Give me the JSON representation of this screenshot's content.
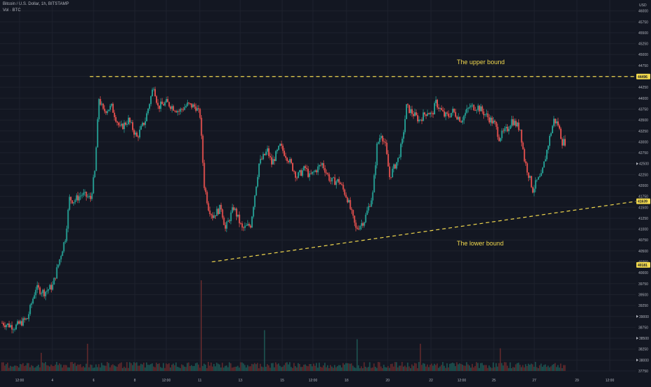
{
  "header": {
    "title": "Bitcoin / U.S. Dollar, 1h, BITSTAMP",
    "volume_label": "Vol · BTC",
    "currency": "USD"
  },
  "annotations": {
    "upper_label": "The upper bound",
    "lower_label": "The lower bound"
  },
  "colors": {
    "background": "#131722",
    "up": "#26a69a",
    "down": "#ef5350",
    "trendline": "#f2d94e",
    "axis_text": "#b2b5be",
    "grid": "#1e222d"
  },
  "chart_data": {
    "type": "candlestick",
    "title": "Bitcoin / U.S. Dollar, 1h, BITSTAMP",
    "x_ticks": [
      "12:00",
      "4",
      "6",
      "8",
      "12:00",
      "11",
      "13",
      "15",
      "12:00",
      "18",
      "20",
      "22",
      "12:00",
      "25",
      "27",
      "29",
      "12:00"
    ],
    "y_ticks": [
      46000,
      45750,
      45500,
      45250,
      45000,
      44750,
      44500,
      44250,
      44000,
      43750,
      43500,
      43250,
      43000,
      42750,
      42500,
      42250,
      42000,
      41750,
      41500,
      41250,
      41000,
      40750,
      40500,
      40250,
      40000,
      39750,
      39500,
      39250,
      39000,
      38750,
      38500,
      38250,
      38000,
      37750
    ],
    "ylim": [
      37750,
      46250
    ],
    "y_markers": [
      {
        "value": 44496,
        "label": "44496",
        "style": "highlight"
      },
      {
        "value": 42500,
        "label": "42500",
        "style": "arrow"
      },
      {
        "value": 41639,
        "label": "41639",
        "style": "highlight"
      },
      {
        "value": 40181,
        "label": "40181",
        "style": "highlight"
      },
      {
        "value": 39000,
        "label": "39000",
        "style": "arrow"
      },
      {
        "value": 38500,
        "label": "38500",
        "style": "arrow"
      },
      {
        "value": 38000,
        "label": "38000",
        "style": "arrow"
      }
    ],
    "price_path": [
      [
        0,
        38850
      ],
      [
        3,
        38760
      ],
      [
        6,
        38950
      ],
      [
        8,
        39650
      ],
      [
        10,
        39550
      ],
      [
        12,
        39700
      ],
      [
        15,
        40800
      ],
      [
        16,
        41700
      ],
      [
        17,
        41650
      ],
      [
        19,
        41800
      ],
      [
        21,
        41700
      ],
      [
        22,
        42300
      ],
      [
        23,
        44000
      ],
      [
        24,
        43700
      ],
      [
        26,
        43800
      ],
      [
        28,
        43300
      ],
      [
        30,
        43500
      ],
      [
        32,
        43100
      ],
      [
        34,
        43500
      ],
      [
        36,
        44300
      ],
      [
        37,
        43800
      ],
      [
        39,
        43900
      ],
      [
        42,
        43700
      ],
      [
        44,
        43850
      ],
      [
        46,
        43800
      ],
      [
        47,
        43600
      ],
      [
        48,
        42000
      ],
      [
        49,
        41500
      ],
      [
        50,
        41300
      ],
      [
        52,
        41500
      ],
      [
        53,
        41000
      ],
      [
        55,
        41500
      ],
      [
        57,
        41000
      ],
      [
        59,
        41100
      ],
      [
        61,
        42500
      ],
      [
        63,
        42800
      ],
      [
        64,
        42500
      ],
      [
        66,
        42900
      ],
      [
        68,
        42600
      ],
      [
        70,
        42200
      ],
      [
        72,
        42400
      ],
      [
        73,
        42200
      ],
      [
        74,
        42300
      ],
      [
        76,
        42500
      ],
      [
        78,
        42100
      ],
      [
        80,
        42100
      ],
      [
        82,
        41700
      ],
      [
        84,
        41000
      ],
      [
        86,
        41200
      ],
      [
        88,
        41800
      ],
      [
        89,
        42900
      ],
      [
        90,
        43200
      ],
      [
        91,
        42900
      ],
      [
        92,
        42200
      ],
      [
        93,
        42400
      ],
      [
        94,
        42600
      ],
      [
        95,
        43000
      ],
      [
        96,
        43800
      ],
      [
        97,
        43700
      ],
      [
        99,
        43500
      ],
      [
        101,
        43700
      ],
      [
        102,
        43600
      ],
      [
        103,
        43900
      ],
      [
        105,
        43600
      ],
      [
        106,
        43600
      ],
      [
        107,
        43700
      ],
      [
        109,
        43500
      ],
      [
        111,
        43800
      ],
      [
        113,
        43800
      ],
      [
        115,
        43600
      ],
      [
        117,
        43400
      ],
      [
        118,
        43100
      ],
      [
        120,
        43300
      ],
      [
        121,
        43500
      ],
      [
        122,
        43400
      ],
      [
        123,
        43300
      ],
      [
        124,
        42600
      ],
      [
        126,
        41900
      ],
      [
        127,
        42100
      ],
      [
        128,
        42200
      ],
      [
        130,
        43100
      ],
      [
        131,
        43500
      ],
      [
        132,
        43400
      ],
      [
        133,
        43000
      ]
    ],
    "total_candles": 134,
    "lines": [
      {
        "name": "The upper bound",
        "style": "dashed",
        "points": [
          [
            21,
            44496
          ],
          [
            134,
            44496
          ]
        ]
      },
      {
        "name": "The lower bound",
        "style": "dashed",
        "points": [
          [
            50,
            40250
          ],
          [
            134,
            41639
          ]
        ]
      }
    ],
    "volume_spikes": [
      [
        47,
        1.0
      ],
      [
        62,
        0.45
      ],
      [
        84,
        0.35
      ],
      [
        20,
        0.3
      ],
      [
        99,
        0.3
      ],
      [
        118,
        0.25
      ],
      [
        9,
        0.2
      ]
    ]
  }
}
